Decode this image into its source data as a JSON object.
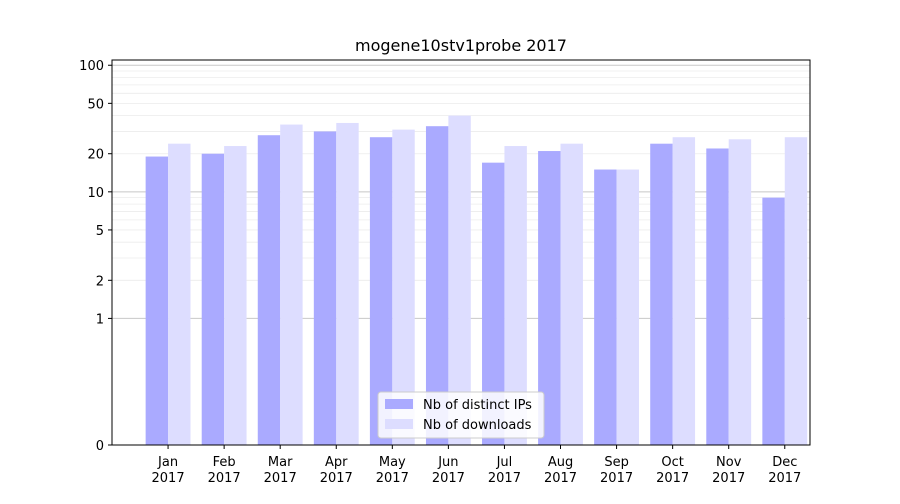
{
  "chart_data": {
    "type": "bar",
    "title": "mogene10stv1probe 2017",
    "xlabel": "",
    "ylabel": "",
    "y_scale": "symlog",
    "ylim": [
      0,
      110
    ],
    "y_ticks": [
      0,
      1,
      2,
      5,
      10,
      20,
      50,
      100
    ],
    "categories": [
      [
        "Jan",
        "2017"
      ],
      [
        "Feb",
        "2017"
      ],
      [
        "Mar",
        "2017"
      ],
      [
        "Apr",
        "2017"
      ],
      [
        "May",
        "2017"
      ],
      [
        "Jun",
        "2017"
      ],
      [
        "Jul",
        "2017"
      ],
      [
        "Aug",
        "2017"
      ],
      [
        "Sep",
        "2017"
      ],
      [
        "Oct",
        "2017"
      ],
      [
        "Nov",
        "2017"
      ],
      [
        "Dec",
        "2017"
      ]
    ],
    "series": [
      {
        "name": "Nb of distinct IPs",
        "color": "#aaaaff",
        "values": [
          19,
          20,
          28,
          30,
          27,
          33,
          17,
          21,
          15,
          24,
          22,
          9
        ]
      },
      {
        "name": "Nb of downloads",
        "color": "#ddddff",
        "values": [
          24,
          23,
          34,
          35,
          31,
          40,
          23,
          24,
          15,
          27,
          26,
          27
        ]
      }
    ],
    "grid": true,
    "legend_position": "bottom-center"
  }
}
